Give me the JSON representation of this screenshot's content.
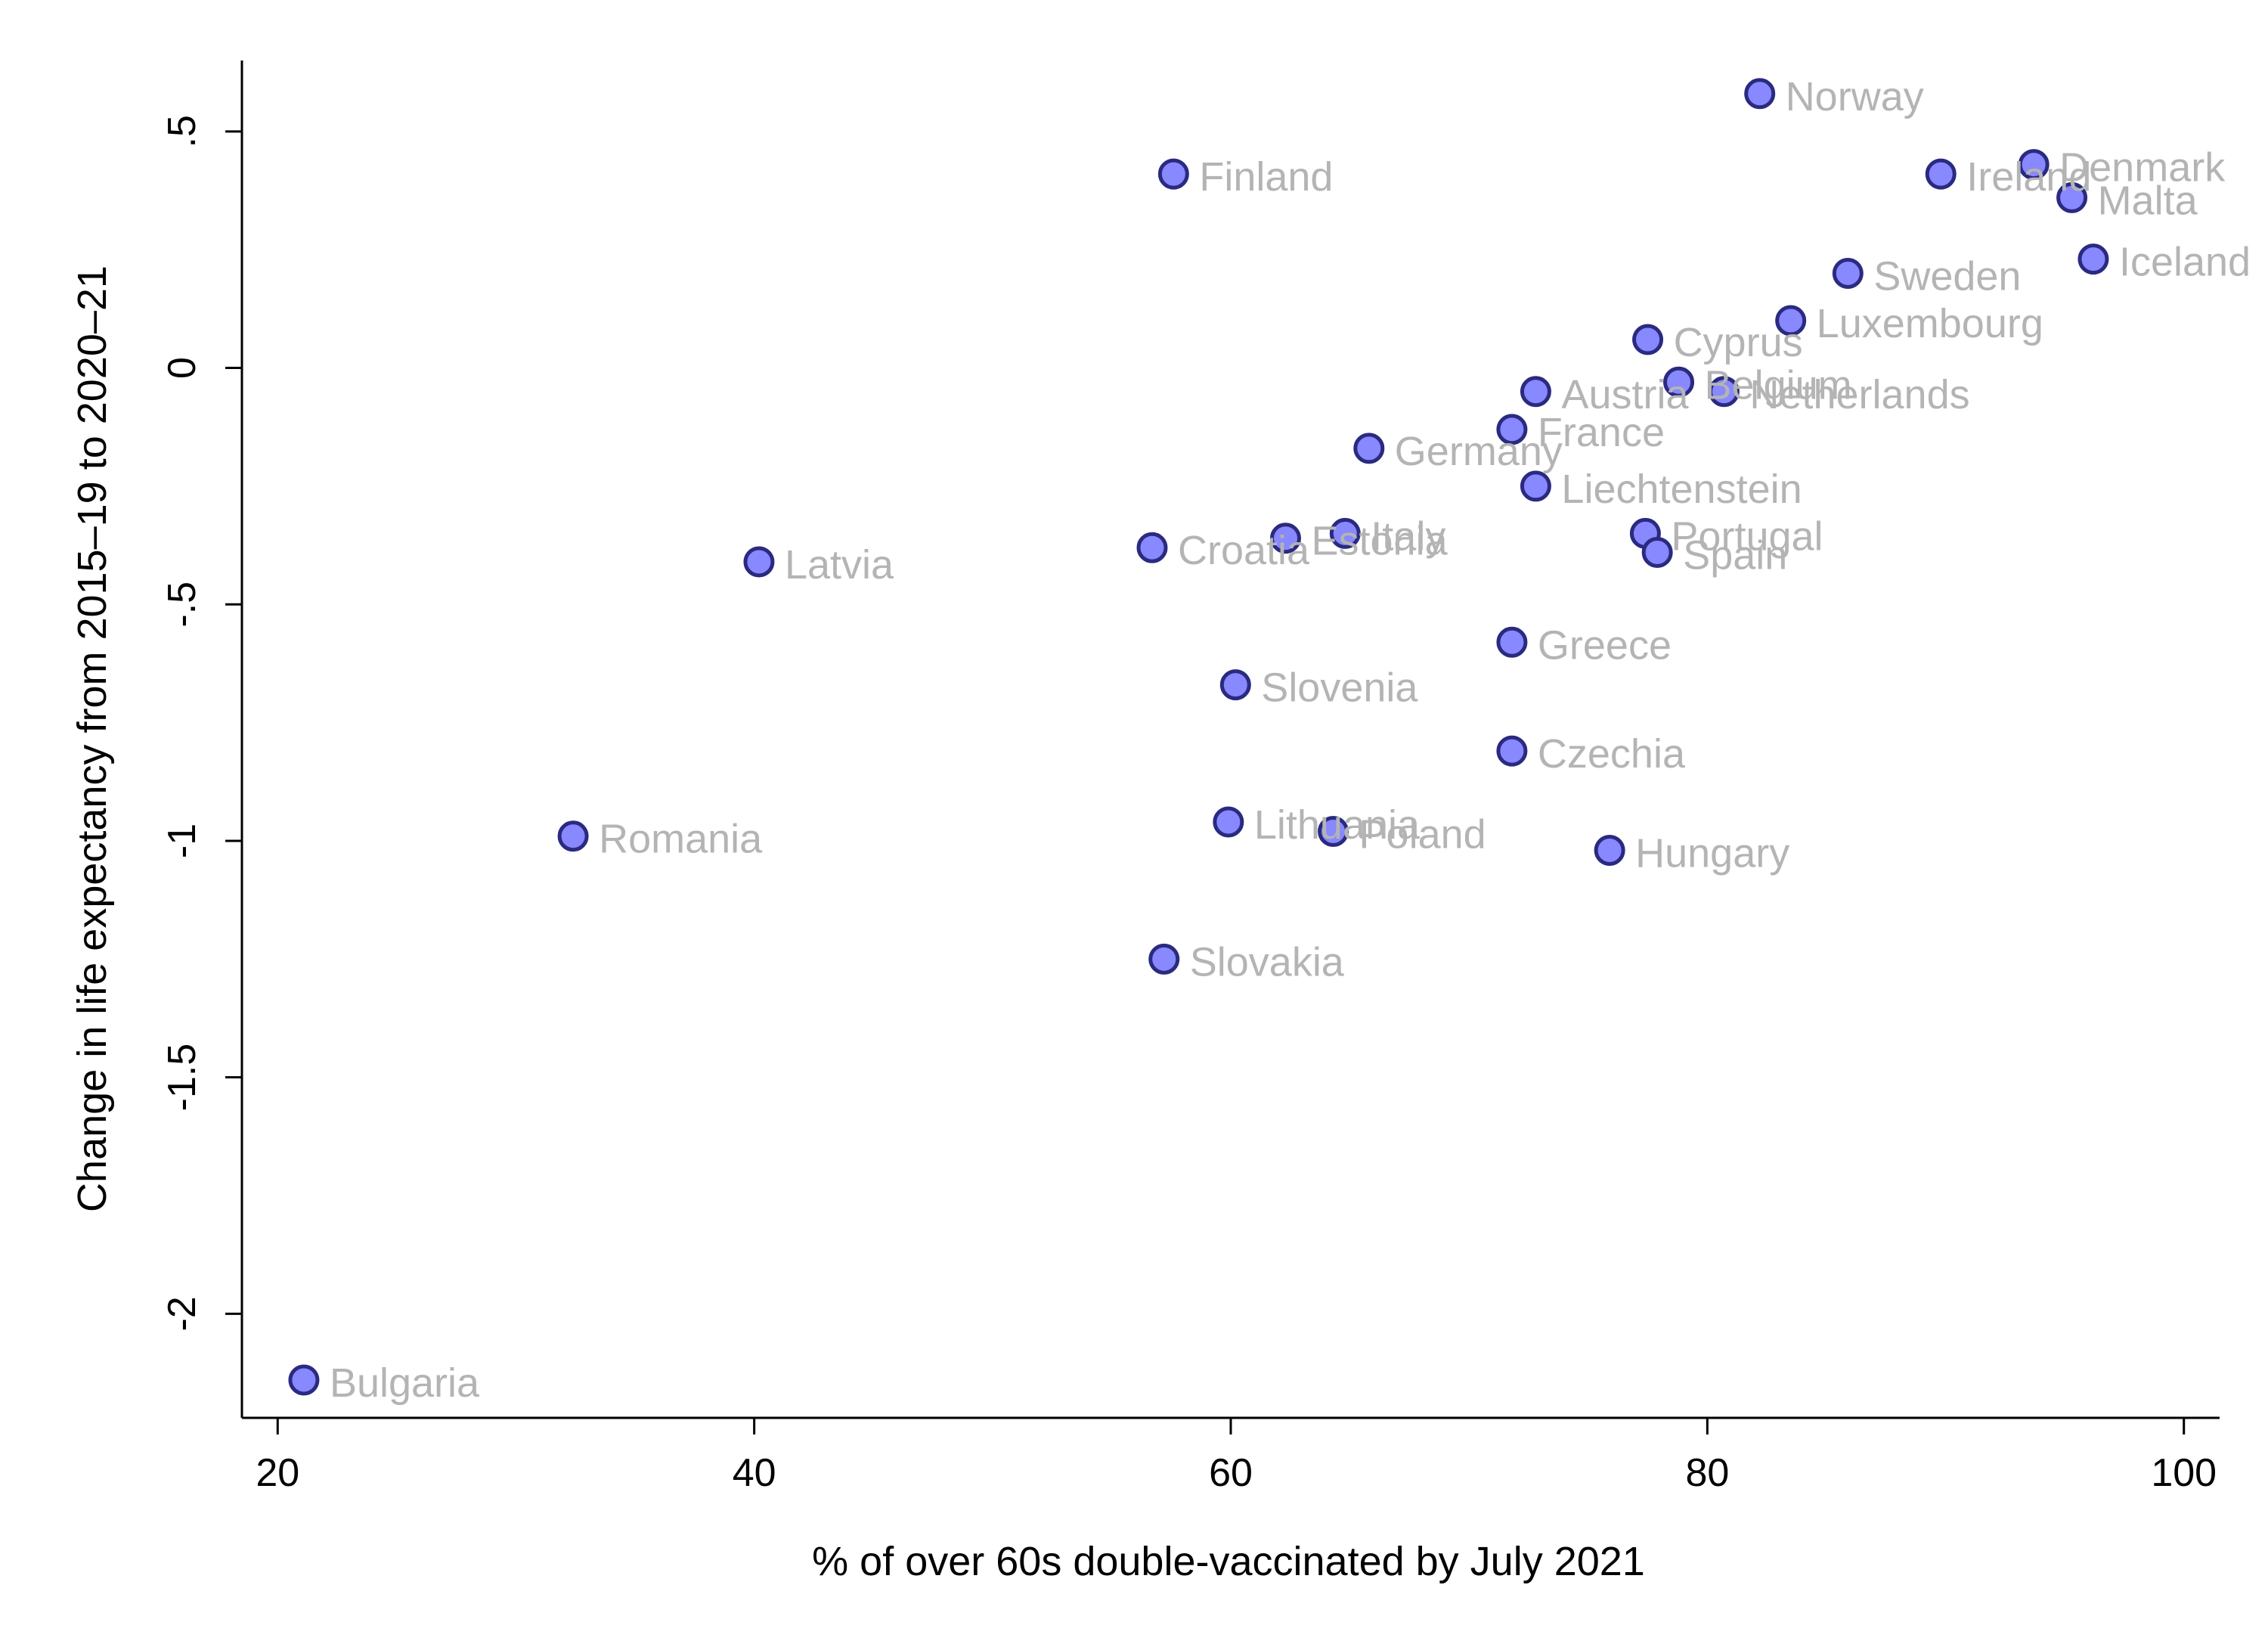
{
  "chart_data": {
    "type": "scatter",
    "xlabel": "% of over 60s double-vaccinated by July 2021",
    "ylabel": "Change in life expectancy from 2015–19 to 2020–21",
    "xlim": [
      18.5,
      101.5
    ],
    "ylim": [
      -2.22,
      0.65
    ],
    "xticks": [
      20,
      40,
      60,
      80,
      100
    ],
    "xtick_labels": [
      "20",
      "40",
      "60",
      "80",
      "100"
    ],
    "yticks": [
      0.5,
      0,
      -0.5,
      -1,
      -1.5,
      -2
    ],
    "ytick_labels": [
      ".5",
      "0",
      "-.5",
      "-1",
      "-1.5",
      "-2"
    ],
    "grid": false,
    "marker_fill": "#8888ff",
    "marker_edge": "#2a2a80",
    "label_color": "#b4b4b4",
    "points": [
      {
        "label": "Norway",
        "x": 82.2,
        "y": 0.58
      },
      {
        "label": "Denmark",
        "x": 93.7,
        "y": 0.43
      },
      {
        "label": "Ireland",
        "x": 89.8,
        "y": 0.41
      },
      {
        "label": "Malta",
        "x": 95.3,
        "y": 0.36
      },
      {
        "label": "Finland",
        "x": 57.6,
        "y": 0.41
      },
      {
        "label": "Iceland",
        "x": 96.2,
        "y": 0.23
      },
      {
        "label": "Sweden",
        "x": 85.9,
        "y": 0.2
      },
      {
        "label": "Luxembourg",
        "x": 83.5,
        "y": 0.1
      },
      {
        "label": "Cyprus",
        "x": 77.5,
        "y": 0.06
      },
      {
        "label": "Belgium",
        "x": 78.8,
        "y": -0.03
      },
      {
        "label": "Netherlands",
        "x": 80.7,
        "y": -0.05
      },
      {
        "label": "Austria",
        "x": 72.8,
        "y": -0.05
      },
      {
        "label": "France",
        "x": 71.8,
        "y": -0.13
      },
      {
        "label": "Germany",
        "x": 65.8,
        "y": -0.17
      },
      {
        "label": "Liechtenstein",
        "x": 72.8,
        "y": -0.25
      },
      {
        "label": "Portugal",
        "x": 77.4,
        "y": -0.35
      },
      {
        "label": "Spain",
        "x": 77.9,
        "y": -0.39
      },
      {
        "label": "Italy",
        "x": 64.8,
        "y": -0.35
      },
      {
        "label": "Estonia",
        "x": 62.3,
        "y": -0.36
      },
      {
        "label": "Croatia",
        "x": 56.7,
        "y": -0.38
      },
      {
        "label": "Latvia",
        "x": 40.2,
        "y": -0.41
      },
      {
        "label": "Greece",
        "x": 71.8,
        "y": -0.58
      },
      {
        "label": "Slovenia",
        "x": 60.2,
        "y": -0.67
      },
      {
        "label": "Czechia",
        "x": 71.8,
        "y": -0.81
      },
      {
        "label": "Lithuania",
        "x": 59.9,
        "y": -0.96
      },
      {
        "label": "Poland",
        "x": 64.3,
        "y": -0.98
      },
      {
        "label": "Hungary",
        "x": 75.9,
        "y": -1.02
      },
      {
        "label": "Romania",
        "x": 32.4,
        "y": -0.99
      },
      {
        "label": "Slovakia",
        "x": 57.2,
        "y": -1.25
      },
      {
        "label": "Bulgaria",
        "x": 21.1,
        "y": -2.14
      }
    ]
  }
}
